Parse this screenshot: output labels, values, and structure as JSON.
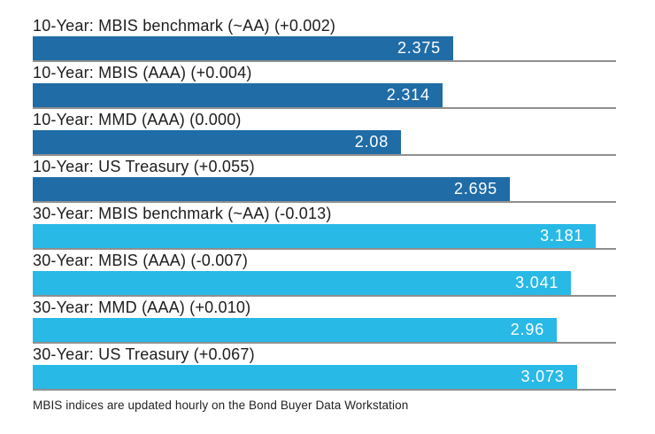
{
  "chart_data": {
    "type": "bar",
    "orientation": "horizontal",
    "title": "",
    "xlabel": "",
    "ylabel": "",
    "xlim": [
      0,
      3.295
    ],
    "grid": "horizontal separator line under each bar",
    "legend": "none",
    "categories": [
      "10-Year: MBIS benchmark (~AA) (+0.002)",
      "10-Year: MBIS (AAA) (+0.004)",
      "10-Year: MMD (AAA) (0.000)",
      "10-Year: US Treasury (+0.055)",
      "30-Year: MBIS benchmark (~AA) (-0.013)",
      "30-Year: MBIS (AAA) (-0.007)",
      "30-Year: MMD (AAA) (+0.010)",
      "30-Year: US Treasury (+0.067)"
    ],
    "values": [
      2.375,
      2.314,
      2.08,
      2.695,
      3.181,
      3.041,
      2.96,
      3.073
    ],
    "rows": [
      {
        "label": "10-Year: MBIS benchmark (~AA) (+0.002)",
        "value": 2.375,
        "display": "2.375",
        "group": "10-year"
      },
      {
        "label": "10-Year: MBIS (AAA) (+0.004)",
        "value": 2.314,
        "display": "2.314",
        "group": "10-year"
      },
      {
        "label": "10-Year: MMD (AAA) (0.000)",
        "value": 2.08,
        "display": "2.08",
        "group": "10-year"
      },
      {
        "label": "10-Year: US Treasury (+0.055)",
        "value": 2.695,
        "display": "2.695",
        "group": "10-year"
      },
      {
        "label": "30-Year: MBIS benchmark (~AA) (-0.013)",
        "value": 3.181,
        "display": "3.181",
        "group": "30-year"
      },
      {
        "label": "30-Year: MBIS (AAA) (-0.007)",
        "value": 3.041,
        "display": "3.041",
        "group": "30-year"
      },
      {
        "label": "30-Year: MMD (AAA) (+0.010)",
        "value": 2.96,
        "display": "2.96",
        "group": "30-year"
      },
      {
        "label": "30-Year: US Treasury (+0.067)",
        "value": 3.073,
        "display": "3.073",
        "group": "30-year"
      }
    ],
    "colors": {
      "10-year": "#1f6ca7",
      "30-year": "#29b9e6",
      "gridline": "#8f8f8f",
      "label_text": "#1d1d1d",
      "value_text": "#ffffff"
    }
  },
  "footnote": "MBIS indices are updated hourly on the Bond Buyer Data Workstation"
}
